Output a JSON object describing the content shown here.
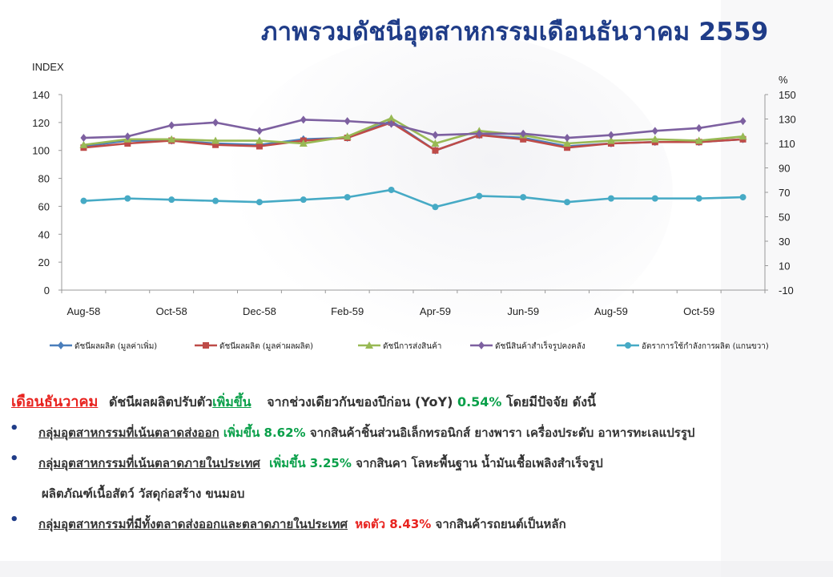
{
  "title": "ภาพรวมดัชนีอุตสาหกรรมเดือนธันวาคม  2559",
  "colors": {
    "title": "#1f3c88",
    "series": [
      "#4a7ebb",
      "#be4b48",
      "#98b954",
      "#7d60a0",
      "#46aac5"
    ]
  },
  "chart_data": {
    "type": "line",
    "categories": [
      "Aug-58",
      "Sep-58",
      "Oct-58",
      "Nov-58",
      "Dec-58",
      "Jan-59",
      "Feb-59",
      "Mar-59",
      "Apr-59",
      "May-59",
      "Jun-59",
      "Jul-59",
      "Aug-59",
      "Sep-59",
      "Oct-59",
      "Nov-59"
    ],
    "tick_labels": [
      "Aug-58",
      "Oct-58",
      "Dec-58",
      "Feb-59",
      "Apr-59",
      "Jun-59",
      "Aug-59",
      "Oct-59"
    ],
    "y_left_label": "INDEX",
    "y_right_label": "%",
    "y_left_ticks": [
      "0",
      "20",
      "40",
      "60",
      "80",
      "100",
      "120",
      "140"
    ],
    "y_right_ticks": [
      "-10",
      "10",
      "30",
      "50",
      "70",
      "90",
      "110",
      "130",
      "150"
    ],
    "ylim_left": [
      0,
      140
    ],
    "ylim_right": [
      -10,
      150
    ],
    "legend_position": "bottom",
    "series": [
      {
        "name": "ดัชนีผลผลิต (มูลค่าเพิ่ม)",
        "axis": "left",
        "marker": "diamond",
        "values": [
          103,
          107,
          107,
          105,
          104,
          108,
          109,
          121,
          100,
          111,
          109,
          103,
          105,
          106,
          106,
          108
        ]
      },
      {
        "name": "ดัชนีผลผลิต (มูลค่าผลผลิต)",
        "axis": "left",
        "marker": "square",
        "values": [
          102,
          105,
          107,
          104,
          103,
          107,
          109,
          120,
          100,
          111,
          108,
          102,
          105,
          106,
          106,
          108
        ]
      },
      {
        "name": "ดัชนีการส่งสินค้า",
        "axis": "left",
        "marker": "triangle",
        "values": [
          104,
          108,
          108,
          107,
          107,
          105,
          110,
          123,
          105,
          114,
          111,
          105,
          107,
          108,
          107,
          110
        ]
      },
      {
        "name": "ดัชนีสินค้าสำเร็จรูปคงคลัง",
        "axis": "left",
        "marker": "diamond",
        "values": [
          109,
          110,
          118,
          120,
          114,
          122,
          121,
          119,
          111,
          112,
          112,
          109,
          111,
          114,
          116,
          121
        ]
      },
      {
        "name": "อัตราการใช้กำลังการผลิต (แกนขวา)",
        "axis": "right",
        "marker": "circle",
        "values": [
          63,
          65,
          64,
          63,
          62,
          64,
          66,
          72,
          58,
          67,
          66,
          62,
          65,
          65,
          65,
          66
        ]
      }
    ]
  },
  "summary": {
    "headline": {
      "month": "เดือนธันวาคม",
      "text1": "ดัชนีผลผลิตปรับตัว",
      "direction": "เพิ่มขึ้น",
      "text2": "จากช่วงเดียวกันของปีก่อน (YoY)",
      "value": "0.54%",
      "text3": "โดยมีปัจจัย ดังนี้"
    },
    "bullets": [
      {
        "group": "กลุ่มอุตสาหกรรมที่เน้นตลาดส่งออก",
        "change": "เพิ่มขึ้น 8.62%",
        "detail": "จากสินค้าชิ้นส่วนอิเล็กทรอนิกส์ ยางพารา เครื่องประดับ อาหารทะเลแปรรูป",
        "detail2": ""
      },
      {
        "group": "กลุ่มอุตสาหกรรมที่เน้นตลาดภายในประเทศ",
        "change": "เพิ่มขึ้น 3.25%",
        "detail": "จากสินคา โลหะพื้นฐาน น้ำมันเชื้อเพลิงสำเร็จรูป",
        "detail2": "ผลิตภัณฑ์เนื้อสัตว์ วัสดุก่อสร้าง ขนมอบ"
      },
      {
        "group": "กลุ่มอุตสาหกรรมที่มีทั้งตลาดส่งออกและตลาดภายในประเทศ",
        "change": "หดตัว 8.43%",
        "detail": "จากสินค้ารถยนต์เป็นหลัก",
        "detail2": ""
      }
    ]
  }
}
